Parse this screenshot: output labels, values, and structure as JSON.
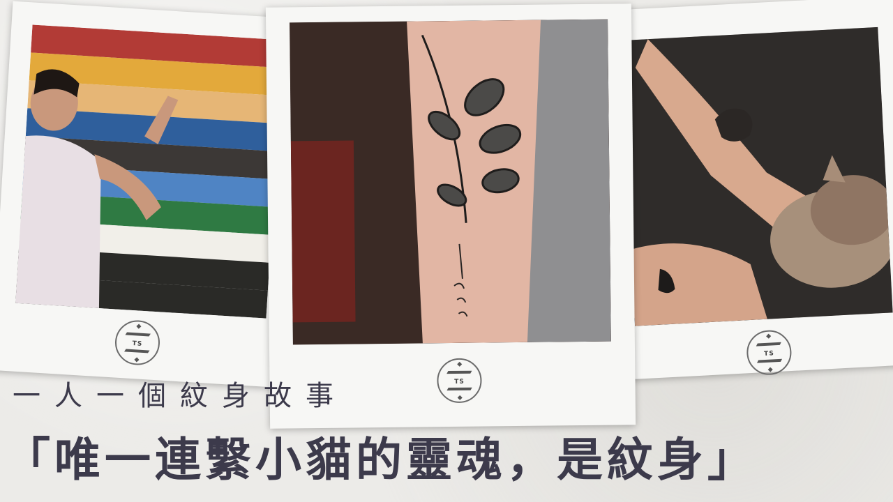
{
  "subtitle": "一人一個紋身故事",
  "title": "「唯一連繫小貓的靈魂，是紋身」",
  "logo_text": "TS",
  "colors": {
    "background": "#ecebe8",
    "text": "#3c3a4b",
    "stripes": [
      "#b23b36",
      "#e3a93b",
      "#e6b676",
      "#2f5f9c",
      "#3c3836",
      "#4f84c4",
      "#2f7a43",
      "#f1efe9"
    ]
  },
  "photos": [
    {
      "name": "rainbow-wall-photo"
    },
    {
      "name": "forearm-plant-tattoo-photo"
    },
    {
      "name": "cat-tattoo-photo"
    }
  ]
}
